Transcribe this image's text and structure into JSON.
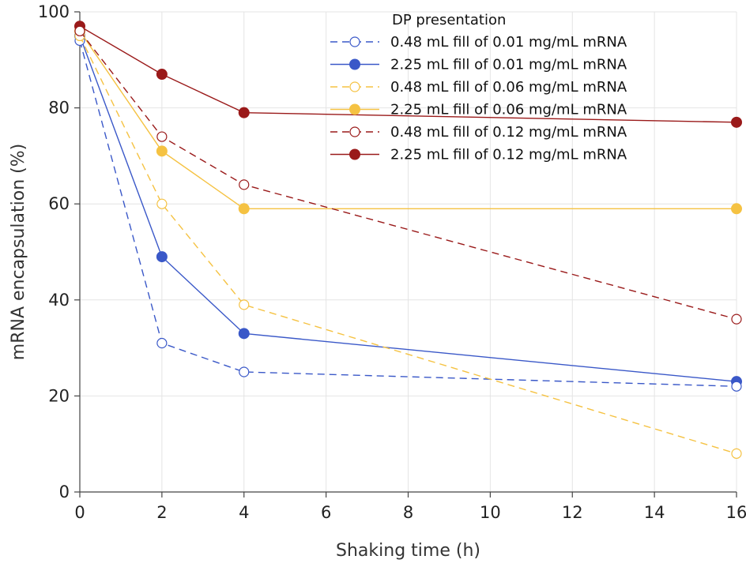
{
  "chart_data": {
    "type": "line",
    "title": "",
    "xlabel": "Shaking time (h)",
    "ylabel": "mRNA encapsulation (%)",
    "xlim": [
      0,
      16
    ],
    "ylim": [
      0,
      100
    ],
    "xticks": [
      0,
      2,
      4,
      6,
      8,
      10,
      12,
      14,
      16
    ],
    "yticks": [
      0,
      20,
      40,
      60,
      80,
      100
    ],
    "grid": true,
    "legend_title": "DP presentation",
    "legend_position": "top-right",
    "series": [
      {
        "name": "0.48 mL fill of 0.01 mg/mL mRNA",
        "color": "#3a58c8",
        "dashed": true,
        "filled": false,
        "x": [
          0,
          2,
          4,
          16
        ],
        "y": [
          94,
          31,
          25,
          22
        ]
      },
      {
        "name": "2.25 mL fill of 0.01 mg/mL mRNA",
        "color": "#3a58c8",
        "dashed": false,
        "filled": true,
        "x": [
          0,
          2,
          4,
          16
        ],
        "y": [
          95,
          49,
          33,
          23
        ]
      },
      {
        "name": "0.48 mL fill of 0.06 mg/mL mRNA",
        "color": "#f5c242",
        "dashed": true,
        "filled": false,
        "x": [
          0,
          2,
          4,
          16
        ],
        "y": [
          95,
          60,
          39,
          8
        ]
      },
      {
        "name": "2.25 mL fill of 0.06 mg/mL mRNA",
        "color": "#f5c242",
        "dashed": false,
        "filled": true,
        "x": [
          0,
          2,
          4,
          16
        ],
        "y": [
          96,
          71,
          59,
          59
        ]
      },
      {
        "name": "0.48 mL fill of 0.12 mg/mL mRNA",
        "color": "#9a1a1a",
        "dashed": true,
        "filled": false,
        "x": [
          0,
          2,
          4,
          16
        ],
        "y": [
          96,
          74,
          64,
          36
        ]
      },
      {
        "name": "2.25 mL fill of 0.12 mg/mL mRNA",
        "color": "#9a1a1a",
        "dashed": false,
        "filled": true,
        "x": [
          0,
          2,
          4,
          16
        ],
        "y": [
          97,
          87,
          79,
          77
        ]
      }
    ]
  }
}
